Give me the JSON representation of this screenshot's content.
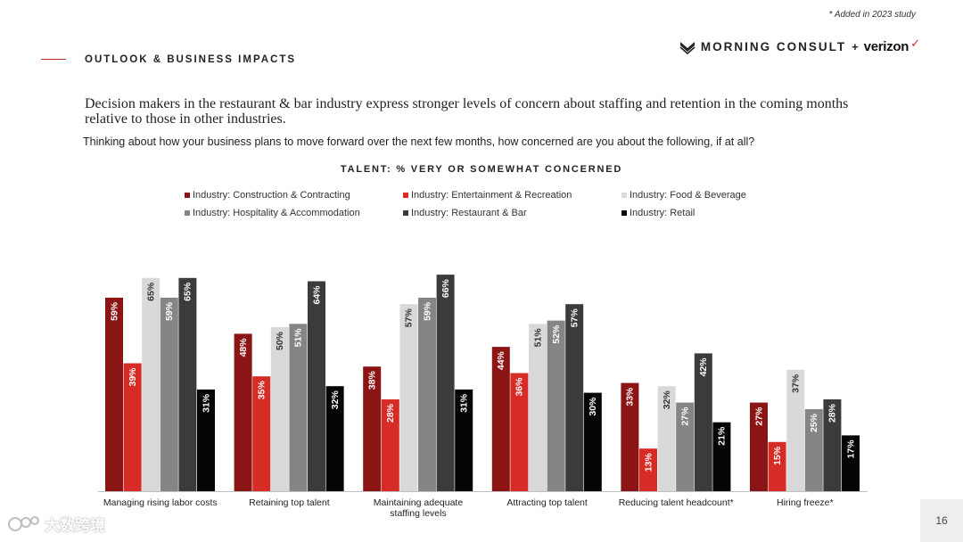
{
  "header": {
    "footnote": "* Added in 2023 study",
    "section_label": "OUTLOOK & BUSINESS IMPACTS",
    "brand_primary": "MORNING CONSULT",
    "brand_separator": "+",
    "brand_secondary": "verizon",
    "brand_check": "✓"
  },
  "headline": "Decision makers in the restaurant & bar industry express stronger levels of concern about staffing and retention in the coming months relative to those in other industries.",
  "question": "Thinking about how your business plans to move forward over the next few months, how concerned are you about the following, if at all?",
  "chart_data": {
    "type": "bar",
    "title": "TALENT: % VERY OR SOMEWHAT CONCERNED",
    "xlabel": "",
    "ylabel": "",
    "ylim": [
      0,
      70
    ],
    "grid": false,
    "legend_position": "top",
    "value_label_suffix": "%",
    "categories": [
      "Managing rising labor costs",
      "Retaining top talent",
      "Maintaining adequate staffing levels",
      "Attracting top talent",
      "Reducing talent headcount*",
      "Hiring freeze*"
    ],
    "series": [
      {
        "name": "Industry: Construction & Contracting",
        "color": "#8b1414",
        "values": [
          59,
          48,
          38,
          44,
          33,
          27
        ]
      },
      {
        "name": "Industry: Entertainment & Recreation",
        "color": "#d72b26",
        "values": [
          39,
          35,
          28,
          36,
          13,
          15
        ]
      },
      {
        "name": "Industry: Food & Beverage",
        "color": "#d9d9d9",
        "values": [
          65,
          50,
          57,
          51,
          32,
          37
        ]
      },
      {
        "name": "Industry: Hospitality & Accommodation",
        "color": "#858585",
        "values": [
          59,
          51,
          59,
          52,
          27,
          25
        ]
      },
      {
        "name": "Industry: Restaurant & Bar",
        "color": "#3b3b3b",
        "values": [
          65,
          64,
          66,
          57,
          42,
          28
        ]
      },
      {
        "name": "Industry: Retail",
        "color": "#050505",
        "values": [
          31,
          32,
          31,
          30,
          21,
          17
        ]
      }
    ]
  },
  "page_number": "16",
  "watermark_text": "大数跨境"
}
